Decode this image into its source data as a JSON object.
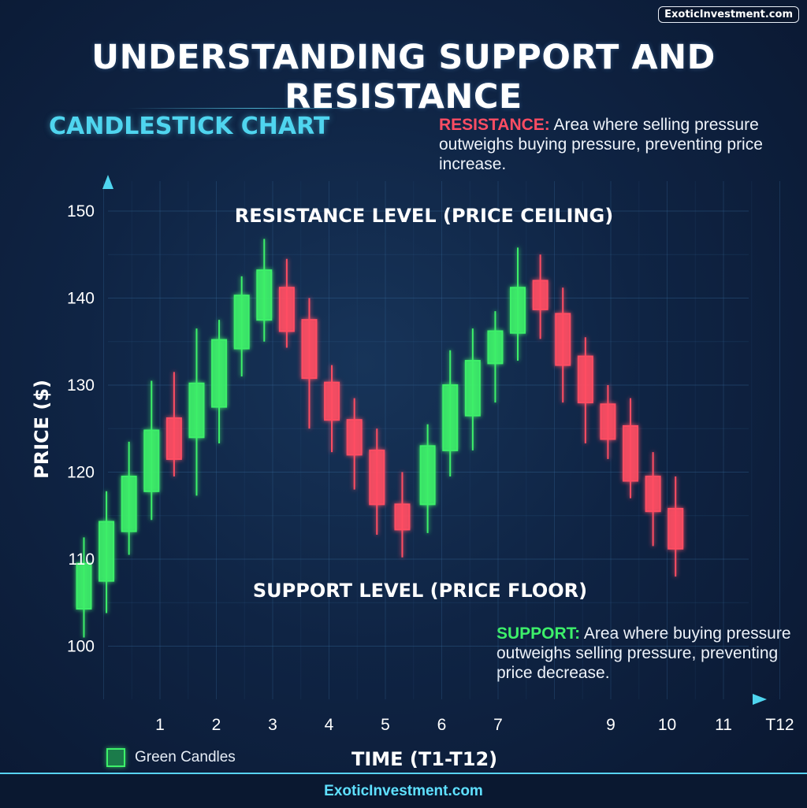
{
  "brand": "ExoticInvestment.com",
  "title": "UNDERSTANDING SUPPORT AND RESISTANCE",
  "subtitle": "CANDLESTICK CHART",
  "resistance_note": {
    "key": "RESISTANCE:",
    "text": " Area where selling pressure outweighs buying pressure, preventing price increase."
  },
  "support_note": {
    "key": "SUPPORT:",
    "text": " Area where buying pressure outweighs selling pressure, preventing price decrease."
  },
  "legend": {
    "label": "Green Candles"
  },
  "footer": "ExoticInvestment.com",
  "colors": {
    "bullish": "#3df06a",
    "bearish": "#ff4d63",
    "axis": "#4fd5ef",
    "resistance": "#ff4d63",
    "support": "#3df06a"
  },
  "chart_data": {
    "type": "candlestick",
    "xlabel": "TIME (T1-T12)",
    "ylabel": "PRICE ($)",
    "ylim": [
      95,
      156
    ],
    "yticks": [
      100,
      110,
      120,
      130,
      140,
      150
    ],
    "xticks": [
      {
        "x": 1,
        "label": "1"
      },
      {
        "x": 2,
        "label": "2"
      },
      {
        "x": 3,
        "label": "3"
      },
      {
        "x": 4,
        "label": "4"
      },
      {
        "x": 5,
        "label": "5"
      },
      {
        "x": 6,
        "label": "6"
      },
      {
        "x": 7,
        "label": "7"
      },
      {
        "x": 9,
        "label": "9"
      },
      {
        "x": 10,
        "label": "10"
      },
      {
        "x": 11,
        "label": "11"
      },
      {
        "x": 12,
        "label": "T12"
      }
    ],
    "xlim": [
      -0.8,
      12.2
    ],
    "resistance": {
      "value": 147.3,
      "label": "RESISTANCE LEVEL (PRICE CEILING)"
    },
    "support": {
      "value": 109.8,
      "label": "SUPPORT LEVEL (PRICE FLOOR)"
    },
    "candles": [
      {
        "t": -0.35,
        "open": 104.3,
        "close": 109.5,
        "high": 112.5,
        "low": 101.0
      },
      {
        "t": 0.05,
        "open": 107.5,
        "close": 114.3,
        "high": 117.8,
        "low": 103.8
      },
      {
        "t": 0.45,
        "open": 113.2,
        "close": 119.5,
        "high": 123.5,
        "low": 110.5
      },
      {
        "t": 0.85,
        "open": 117.8,
        "close": 124.8,
        "high": 130.5,
        "low": 114.5
      },
      {
        "t": 1.25,
        "open": 126.2,
        "close": 121.5,
        "high": 131.5,
        "low": 119.5
      },
      {
        "t": 1.65,
        "open": 124.0,
        "close": 130.2,
        "high": 136.5,
        "low": 117.3
      },
      {
        "t": 2.05,
        "open": 127.5,
        "close": 135.2,
        "high": 137.5,
        "low": 123.3
      },
      {
        "t": 2.45,
        "open": 134.2,
        "close": 140.3,
        "high": 142.5,
        "low": 131.0
      },
      {
        "t": 2.85,
        "open": 137.5,
        "close": 143.2,
        "high": 146.8,
        "low": 135.0
      },
      {
        "t": 3.25,
        "open": 141.2,
        "close": 136.2,
        "high": 144.5,
        "low": 134.3
      },
      {
        "t": 3.65,
        "open": 137.5,
        "close": 130.8,
        "high": 140.0,
        "low": 125.0
      },
      {
        "t": 4.05,
        "open": 130.3,
        "close": 126.0,
        "high": 132.3,
        "low": 122.3
      },
      {
        "t": 4.45,
        "open": 126.0,
        "close": 122.0,
        "high": 128.5,
        "low": 118.0
      },
      {
        "t": 4.85,
        "open": 122.5,
        "close": 116.3,
        "high": 125.0,
        "low": 112.8
      },
      {
        "t": 5.3,
        "open": 116.3,
        "close": 113.4,
        "high": 120.0,
        "low": 110.2
      },
      {
        "t": 5.75,
        "open": 116.3,
        "close": 123.0,
        "high": 125.5,
        "low": 113.0
      },
      {
        "t": 6.15,
        "open": 122.5,
        "close": 130.0,
        "high": 134.0,
        "low": 119.5
      },
      {
        "t": 6.55,
        "open": 126.5,
        "close": 132.8,
        "high": 136.5,
        "low": 122.5
      },
      {
        "t": 6.95,
        "open": 132.5,
        "close": 136.2,
        "high": 138.5,
        "low": 128.0
      },
      {
        "t": 7.35,
        "open": 136.0,
        "close": 141.2,
        "high": 145.8,
        "low": 132.8
      },
      {
        "t": 7.75,
        "open": 142.0,
        "close": 138.7,
        "high": 145.0,
        "low": 135.3
      },
      {
        "t": 8.15,
        "open": 138.2,
        "close": 132.3,
        "high": 141.2,
        "low": 128.0
      },
      {
        "t": 8.55,
        "open": 133.3,
        "close": 128.0,
        "high": 135.5,
        "low": 123.3
      },
      {
        "t": 8.95,
        "open": 127.8,
        "close": 123.8,
        "high": 130.0,
        "low": 121.5
      },
      {
        "t": 9.35,
        "open": 125.3,
        "close": 119.0,
        "high": 128.5,
        "low": 117.0
      },
      {
        "t": 9.75,
        "open": 119.5,
        "close": 115.5,
        "high": 122.3,
        "low": 111.5
      },
      {
        "t": 10.15,
        "open": 115.8,
        "close": 111.2,
        "high": 119.5,
        "low": 108.0
      }
    ]
  }
}
